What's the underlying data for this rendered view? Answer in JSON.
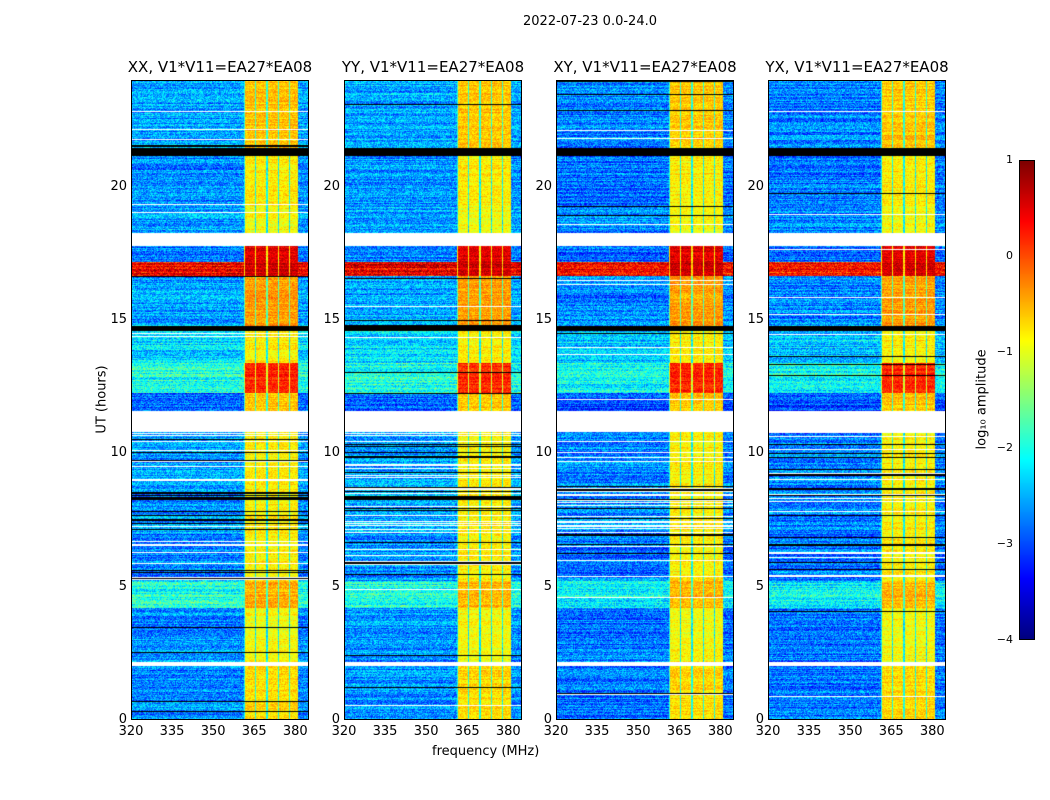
{
  "figure": {
    "suptitle": "2022-07-23 0.0-24.0"
  },
  "chart_data": {
    "type": "heatmap",
    "title": "2022-07-23 0.0-24.0",
    "xlabel": "frequency (MHz)",
    "ylabel": "UT (hours)",
    "xlim": [
      320,
      385
    ],
    "ylim": [
      0,
      24
    ],
    "xticks": [
      "320",
      "335",
      "350",
      "365",
      "380"
    ],
    "xtick_values": [
      320,
      335,
      350,
      365,
      380
    ],
    "yticks": [
      "0",
      "5",
      "10",
      "15",
      "20"
    ],
    "ytick_values": [
      0,
      5,
      10,
      15,
      20
    ],
    "bright_band_mhz": [
      361,
      381
    ],
    "panels": [
      {
        "title": "XX, V1*V11=EA27*EA08",
        "seed": 1,
        "offset": 0
      },
      {
        "title": "YY, V1*V11=EA27*EA08",
        "seed": 2,
        "offset": 0.05
      },
      {
        "title": "XY, V1*V11=EA27*EA08",
        "seed": 3,
        "offset": -0.1
      },
      {
        "title": "YX, V1*V11=EA27*EA08",
        "seed": 4,
        "offset": -0.1
      }
    ],
    "segments_hours": [
      {
        "t": [
          0,
          2.0
        ],
        "bg": -2.7,
        "band": -0.7
      },
      {
        "t": [
          2.0,
          2.15
        ],
        "flag": "white"
      },
      {
        "t": [
          2.15,
          4.2
        ],
        "bg": -2.7,
        "band": -0.9
      },
      {
        "t": [
          4.2,
          5.2
        ],
        "bg": -2.0,
        "band": -0.5
      },
      {
        "t": [
          5.2,
          7.0
        ],
        "bg": -2.7,
        "band": -0.8,
        "stripes": 0.5
      },
      {
        "t": [
          7.0,
          10.8
        ],
        "bg": -2.6,
        "band": -0.8,
        "stripes": 0.6
      },
      {
        "t": [
          10.8,
          11.6
        ],
        "flag": "white"
      },
      {
        "t": [
          11.6,
          12.3
        ],
        "bg": -2.9,
        "band": -0.6
      },
      {
        "t": [
          12.3,
          13.4
        ],
        "bg": -2.0,
        "band": 0.2
      },
      {
        "t": [
          13.4,
          14.6
        ],
        "bg": -2.3,
        "band": -0.8
      },
      {
        "t": [
          14.6,
          14.8
        ],
        "flag": "black"
      },
      {
        "t": [
          14.8,
          16.7
        ],
        "bg": -2.6,
        "band": -0.4
      },
      {
        "t": [
          16.7,
          17.2
        ],
        "bg": 0.4,
        "band": 0.6
      },
      {
        "t": [
          17.2,
          17.8
        ],
        "bg": -2.8,
        "band": 0.5
      },
      {
        "t": [
          17.8,
          18.3
        ],
        "flag": "white"
      },
      {
        "t": [
          18.3,
          19.3
        ],
        "bg": -2.6,
        "band": -0.9
      },
      {
        "t": [
          19.3,
          21.2
        ],
        "bg": -2.7,
        "band": -0.8
      },
      {
        "t": [
          21.2,
          21.5
        ],
        "flag": "black"
      },
      {
        "t": [
          21.5,
          24.0
        ],
        "bg": -2.6,
        "band": -0.6
      }
    ],
    "colorbar": {
      "label": "log₁₀ amplitude",
      "range": [
        -4,
        1
      ],
      "ticks": [
        "−4",
        "−3",
        "−2",
        "−1",
        "0",
        "1"
      ],
      "tick_values": [
        -4,
        -3,
        -2,
        -1,
        0,
        1
      ],
      "colormap": "jet"
    }
  }
}
